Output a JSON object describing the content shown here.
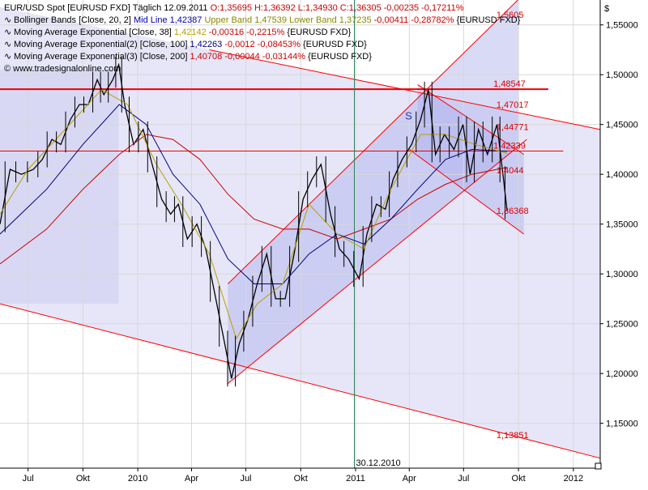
{
  "chart_data": {
    "type": "line",
    "instrument": "EUR/USD Spot [EURUSD FXD]",
    "title_line": {
      "instrument": "EUR/USD Spot [EURUSD FXD]",
      "period": "Täglich",
      "date": "12.09.2011",
      "ohlc": "O:1,35695 H:1,36392 L:1,34930 C:1,36305",
      "change": "-0,00235 -0,17211%"
    },
    "legend": [
      {
        "label": "Bollinger Bands [Close, 20, 2]",
        "parts": [
          {
            "text": "Mid Line 1,42387",
            "color": "#0000aa"
          },
          {
            "text": "Upper Band 1,47539",
            "color": "#8a8a00"
          },
          {
            "text": "Lower Band 1,37235",
            "color": "#8a8a00"
          },
          {
            "text": "-0,00411 -0,28782%",
            "color": "#cc0000"
          },
          {
            "text": "{EURUSD FXD}",
            "color": "#000000"
          }
        ]
      },
      {
        "label": "Moving Average Exponential [Close, 38]",
        "parts": [
          {
            "text": "1,42142",
            "color": "#b8a000"
          },
          {
            "text": "-0,00316 -0,2215%",
            "color": "#cc0000"
          },
          {
            "text": "{EURUSD FXD}",
            "color": "#000000"
          }
        ]
      },
      {
        "label": "Moving Average Exponential(2) [Close, 100]",
        "parts": [
          {
            "text": "1,42263",
            "color": "#000080"
          },
          {
            "text": "-0,0012 -0,08453%",
            "color": "#cc0000"
          },
          {
            "text": "{EURUSD FXD}",
            "color": "#000000"
          }
        ]
      },
      {
        "label": "Moving Average Exponential(3) [Close, 200]",
        "parts": [
          {
            "text": "1,40708",
            "color": "#cc0000"
          },
          {
            "text": "-0,00044 -0,03144%",
            "color": "#cc0000"
          },
          {
            "text": "{EURUSD FXD}",
            "color": "#000000"
          }
        ]
      }
    ],
    "watermark": "© www.tradesignalonline.com",
    "currency_symbol": "$",
    "y_ticks": [
      "1,55000",
      "1,50000",
      "1,45000",
      "1,40000",
      "1,35000",
      "1,30000",
      "1,25000",
      "1,20000",
      "1,15000"
    ],
    "y_tick_values": [
      1.55,
      1.5,
      1.45,
      1.4,
      1.35,
      1.3,
      1.25,
      1.2,
      1.15
    ],
    "ylim": [
      1.105,
      1.575
    ],
    "x_ticks": [
      "Jul",
      "Okt",
      "2010",
      "Apr",
      "Jul",
      "Okt",
      "2011",
      "Apr",
      "Jul",
      "Okt",
      "2012"
    ],
    "x_tick_dates": [
      "2009-07-01",
      "2009-10-01",
      "2010-01-01",
      "2010-04-01",
      "2010-07-01",
      "2010-10-01",
      "2011-01-01",
      "2011-04-01",
      "2011-07-01",
      "2011-10-01",
      "2012-01-01"
    ],
    "xlim": [
      "2009-05-15",
      "2012-02-15"
    ],
    "vertical_marker": {
      "date": "2010-12-30",
      "label": "30.12.2010"
    },
    "horizontal_levels": [
      {
        "value": 1.48547,
        "label": "1,48547"
      },
      {
        "value": 1.42339,
        "label": "1,42339"
      }
    ],
    "level_labels": [
      {
        "value": 1.5605,
        "label": "1,5605"
      },
      {
        "value": 1.47017,
        "label": "1,47017"
      },
      {
        "value": 1.44771,
        "label": "1,44771"
      },
      {
        "value": 1.4044,
        "label": "1,4044"
      },
      {
        "value": 1.36368,
        "label": "1,36368"
      },
      {
        "value": 1.13851,
        "label": "1,13851"
      }
    ],
    "trend_lines": [
      {
        "name": "down-channel-upper",
        "from": {
          "date": "2010-05-01",
          "value": 1.525
        },
        "to": {
          "date": "2012-02-15",
          "value": 1.445
        }
      },
      {
        "name": "down-channel-lower",
        "from": {
          "date": "2009-05-15",
          "value": 1.27
        },
        "to": {
          "date": "2012-02-15",
          "value": 1.115
        }
      },
      {
        "name": "up-channel-upper",
        "from": {
          "date": "2010-06-01",
          "value": 1.29
        },
        "to": {
          "date": "2011-09-30",
          "value": 1.575
        }
      },
      {
        "name": "up-channel-lower",
        "from": {
          "date": "2010-06-01",
          "value": 1.19
        },
        "to": {
          "date": "2011-10-15",
          "value": 1.435
        }
      },
      {
        "name": "wedge-upper",
        "from": {
          "date": "2011-04-15",
          "value": 1.49
        },
        "to": {
          "date": "2011-10-10",
          "value": 1.42
        }
      },
      {
        "name": "wedge-lower",
        "from": {
          "date": "2011-04-01",
          "value": 1.425
        },
        "to": {
          "date": "2011-10-10",
          "value": 1.34
        }
      }
    ],
    "pattern_label": {
      "date": "2011-03-25",
      "value": 1.455,
      "text": "S"
    },
    "series": [
      {
        "name": "EUR/USD Close",
        "color": "#000000",
        "points": [
          [
            "2009-05-15",
            1.35
          ],
          [
            "2009-06-01",
            1.405
          ],
          [
            "2009-06-20",
            1.4
          ],
          [
            "2009-07-10",
            1.405
          ],
          [
            "2009-07-25",
            1.415
          ],
          [
            "2009-08-10",
            1.435
          ],
          [
            "2009-08-25",
            1.43
          ],
          [
            "2009-09-10",
            1.455
          ],
          [
            "2009-09-25",
            1.47
          ],
          [
            "2009-10-10",
            1.47
          ],
          [
            "2009-10-25",
            1.495
          ],
          [
            "2009-11-05",
            1.48
          ],
          [
            "2009-11-20",
            1.495
          ],
          [
            "2009-11-30",
            1.51
          ],
          [
            "2009-12-10",
            1.47
          ],
          [
            "2009-12-25",
            1.43
          ],
          [
            "2010-01-10",
            1.445
          ],
          [
            "2010-01-25",
            1.41
          ],
          [
            "2010-02-10",
            1.375
          ],
          [
            "2010-02-25",
            1.36
          ],
          [
            "2010-03-10",
            1.37
          ],
          [
            "2010-03-25",
            1.335
          ],
          [
            "2010-04-10",
            1.35
          ],
          [
            "2010-04-25",
            1.325
          ],
          [
            "2010-05-10",
            1.28
          ],
          [
            "2010-05-25",
            1.235
          ],
          [
            "2010-06-07",
            1.195
          ],
          [
            "2010-06-20",
            1.23
          ],
          [
            "2010-07-05",
            1.255
          ],
          [
            "2010-07-20",
            1.29
          ],
          [
            "2010-08-05",
            1.32
          ],
          [
            "2010-08-20",
            1.275
          ],
          [
            "2010-09-05",
            1.275
          ],
          [
            "2010-09-20",
            1.32
          ],
          [
            "2010-10-05",
            1.375
          ],
          [
            "2010-10-20",
            1.395
          ],
          [
            "2010-11-04",
            1.41
          ],
          [
            "2010-11-20",
            1.36
          ],
          [
            "2010-12-05",
            1.325
          ],
          [
            "2010-12-20",
            1.315
          ],
          [
            "2011-01-07",
            1.295
          ],
          [
            "2011-01-20",
            1.34
          ],
          [
            "2011-02-05",
            1.37
          ],
          [
            "2011-02-20",
            1.365
          ],
          [
            "2011-03-05",
            1.395
          ],
          [
            "2011-03-20",
            1.415
          ],
          [
            "2011-04-05",
            1.43
          ],
          [
            "2011-04-20",
            1.455
          ],
          [
            "2011-05-03",
            1.485
          ],
          [
            "2011-05-15",
            1.42
          ],
          [
            "2011-05-30",
            1.44
          ],
          [
            "2011-06-15",
            1.425
          ],
          [
            "2011-06-30",
            1.45
          ],
          [
            "2011-07-12",
            1.4
          ],
          [
            "2011-07-26",
            1.445
          ],
          [
            "2011-08-10",
            1.42
          ],
          [
            "2011-08-26",
            1.45
          ],
          [
            "2011-09-05",
            1.4
          ],
          [
            "2011-09-12",
            1.363
          ]
        ]
      },
      {
        "name": "EMA 200",
        "color": "#cc0000",
        "points": [
          [
            "2009-05-15",
            1.31
          ],
          [
            "2009-08-01",
            1.345
          ],
          [
            "2009-10-01",
            1.385
          ],
          [
            "2009-12-01",
            1.42
          ],
          [
            "2010-01-15",
            1.44
          ],
          [
            "2010-03-01",
            1.435
          ],
          [
            "2010-04-15",
            1.415
          ],
          [
            "2010-06-01",
            1.38
          ],
          [
            "2010-07-15",
            1.355
          ],
          [
            "2010-09-01",
            1.345
          ],
          [
            "2010-10-15",
            1.345
          ],
          [
            "2010-12-01",
            1.335
          ],
          [
            "2011-01-15",
            1.345
          ],
          [
            "2011-03-01",
            1.355
          ],
          [
            "2011-04-15",
            1.375
          ],
          [
            "2011-06-01",
            1.39
          ],
          [
            "2011-07-15",
            1.4
          ],
          [
            "2011-09-12",
            1.407
          ]
        ]
      },
      {
        "name": "EMA 100",
        "color": "#000080",
        "points": [
          [
            "2009-05-15",
            1.34
          ],
          [
            "2009-08-01",
            1.385
          ],
          [
            "2009-10-01",
            1.43
          ],
          [
            "2009-12-01",
            1.47
          ],
          [
            "2010-01-15",
            1.45
          ],
          [
            "2010-03-01",
            1.4
          ],
          [
            "2010-04-15",
            1.37
          ],
          [
            "2010-06-01",
            1.315
          ],
          [
            "2010-07-15",
            1.29
          ],
          [
            "2010-09-01",
            1.29
          ],
          [
            "2010-10-15",
            1.32
          ],
          [
            "2010-12-01",
            1.34
          ],
          [
            "2011-01-15",
            1.33
          ],
          [
            "2011-03-01",
            1.355
          ],
          [
            "2011-04-15",
            1.385
          ],
          [
            "2011-06-01",
            1.415
          ],
          [
            "2011-07-15",
            1.425
          ],
          [
            "2011-09-12",
            1.423
          ]
        ]
      },
      {
        "name": "EMA 38",
        "color": "#b8a000",
        "points": [
          [
            "2009-05-15",
            1.36
          ],
          [
            "2009-07-01",
            1.405
          ],
          [
            "2009-09-01",
            1.445
          ],
          [
            "2009-11-01",
            1.485
          ],
          [
            "2009-12-15",
            1.47
          ],
          [
            "2010-02-01",
            1.41
          ],
          [
            "2010-03-15",
            1.37
          ],
          [
            "2010-05-01",
            1.32
          ],
          [
            "2010-06-15",
            1.235
          ],
          [
            "2010-07-20",
            1.27
          ],
          [
            "2010-09-01",
            1.29
          ],
          [
            "2010-10-15",
            1.37
          ],
          [
            "2010-12-01",
            1.34
          ],
          [
            "2011-01-15",
            1.325
          ],
          [
            "2011-03-01",
            1.385
          ],
          [
            "2011-04-20",
            1.44
          ],
          [
            "2011-06-01",
            1.44
          ],
          [
            "2011-07-20",
            1.43
          ],
          [
            "2011-09-12",
            1.421
          ]
        ]
      }
    ]
  }
}
